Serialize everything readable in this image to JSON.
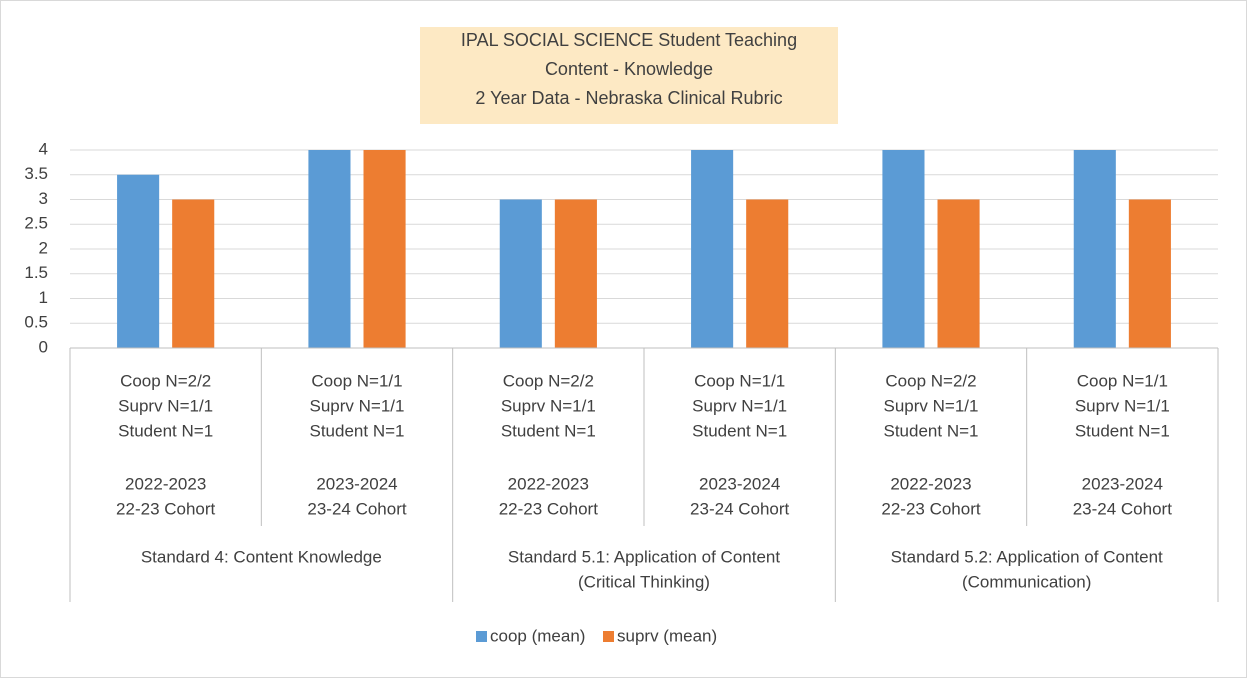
{
  "chart_data": {
    "type": "bar",
    "title": [
      "IPAL SOCIAL SCIENCE  Student Teaching",
      "Content - Knowledge",
      "2 Year Data - Nebraska Clinical Rubric"
    ],
    "categories": [
      [
        "Coop N=2/2",
        "Suprv N=1/1",
        "Student N=1",
        "2022-2023",
        "22-23 Cohort"
      ],
      [
        "Coop N=1/1",
        "Suprv N=1/1",
        "Student N=1",
        "2023-2024",
        "23-24 Cohort"
      ],
      [
        "Coop N=2/2",
        "Suprv N=1/1",
        "Student N=1",
        "2022-2023",
        "22-23 Cohort"
      ],
      [
        "Coop N=1/1",
        "Suprv N=1/1",
        "Student N=1",
        "2023-2024",
        "23-24 Cohort"
      ],
      [
        "Coop N=2/2",
        "Suprv N=1/1",
        "Student N=1",
        "2022-2023",
        "22-23 Cohort"
      ],
      [
        "Coop N=1/1",
        "Suprv N=1/1",
        "Student N=1",
        "2023-2024",
        "23-24 Cohort"
      ]
    ],
    "groups": [
      [
        "Standard 4: Content Knowledge"
      ],
      [
        "Standard 5.1: Application of Content",
        "(Critical Thinking)"
      ],
      [
        "Standard 5.2: Application of Content",
        "(Communication)"
      ]
    ],
    "series": [
      {
        "name": "coop (mean)",
        "color": "#5b9bd5",
        "values": [
          3.5,
          4,
          3,
          4,
          4,
          4
        ]
      },
      {
        "name": "suprv (mean)",
        "color": "#ed7d31",
        "values": [
          3,
          4,
          3,
          3,
          3,
          3
        ]
      }
    ],
    "ylim": [
      0,
      4
    ],
    "yticks": [
      0,
      0.5,
      1,
      1.5,
      2,
      2.5,
      3,
      3.5,
      4
    ],
    "grid": true,
    "legend": "bottom"
  }
}
